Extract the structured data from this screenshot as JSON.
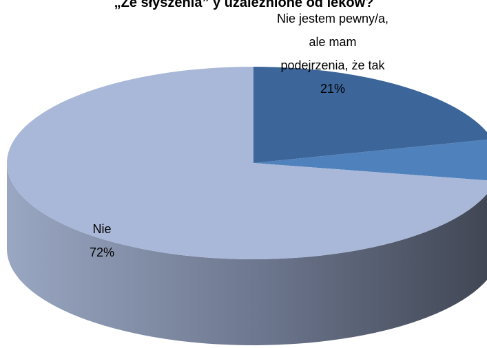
{
  "chart_data": {
    "type": "pie3d",
    "title": "„Ze słyszenia” y uzależnione od leków?",
    "categories": [
      "Nie jestem pewny/a, ale mam podejrzenia, że tak",
      null,
      "Nie"
    ],
    "values": [
      21,
      7,
      72
    ],
    "value_labels": [
      "21%",
      null,
      "72%"
    ],
    "colors": [
      "#3c6599",
      "#4f81bd",
      "#a9b8d8"
    ]
  }
}
